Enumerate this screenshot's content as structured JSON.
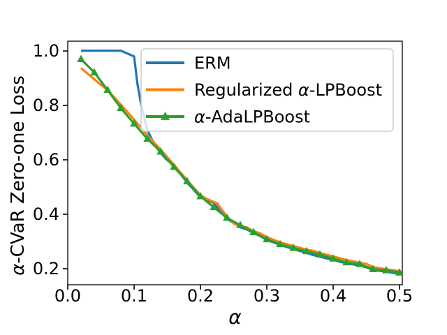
{
  "chart_data": {
    "type": "line",
    "title": "",
    "xlabel": "α",
    "ylabel": "α-CVaR Zero-one Loss",
    "xlim": [
      0.0,
      0.5042
    ],
    "ylim": [
      0.141,
      1.036
    ],
    "x_ticks": [
      0.0,
      0.1,
      0.2,
      0.3,
      0.4,
      0.5
    ],
    "x_tick_labels": [
      "0.0",
      "0.1",
      "0.2",
      "0.3",
      "0.4",
      "0.5"
    ],
    "y_ticks": [
      0.2,
      0.4,
      0.6,
      0.8,
      1.0
    ],
    "y_tick_labels": [
      "0.2",
      "0.4",
      "0.6",
      "0.8",
      "1.0"
    ],
    "grid": false,
    "legend": {
      "position": "upper right",
      "frame_fill": "rgba(255,255,255,0.8)",
      "frame_stroke": "#cccccc",
      "entries": [
        {
          "label": "ERM",
          "color": "#1f77b4",
          "marker": "none"
        },
        {
          "label": "Regularized α-LPBoost",
          "color": "#ff7f0e",
          "marker": "none"
        },
        {
          "label": "α-AdaLPBoost",
          "color": "#2ca02c",
          "marker": "triangle"
        }
      ]
    },
    "series": [
      {
        "name": "ERM",
        "color": "#1f77b4",
        "marker": "none",
        "points": [
          [
            0.02,
            1.001
          ],
          [
            0.08,
            1.001
          ],
          [
            0.1,
            0.98
          ],
          [
            0.105,
            0.879
          ],
          [
            0.11,
            0.81
          ],
          [
            0.115,
            0.755
          ],
          [
            0.12,
            0.71
          ],
          [
            0.127,
            0.674
          ],
          [
            0.138,
            0.631
          ],
          [
            0.148,
            0.603
          ],
          [
            0.16,
            0.579
          ],
          [
            0.17,
            0.548
          ],
          [
            0.18,
            0.516
          ],
          [
            0.19,
            0.49
          ],
          [
            0.2,
            0.462
          ],
          [
            0.21,
            0.452
          ],
          [
            0.22,
            0.442
          ],
          [
            0.23,
            0.41
          ],
          [
            0.24,
            0.383
          ],
          [
            0.25,
            0.368
          ],
          [
            0.26,
            0.352
          ],
          [
            0.27,
            0.344
          ],
          [
            0.28,
            0.331
          ],
          [
            0.29,
            0.32
          ],
          [
            0.3,
            0.306
          ],
          [
            0.31,
            0.297
          ],
          [
            0.32,
            0.288
          ],
          [
            0.33,
            0.28
          ],
          [
            0.34,
            0.272
          ],
          [
            0.35,
            0.265
          ],
          [
            0.36,
            0.258
          ],
          [
            0.37,
            0.25
          ],
          [
            0.38,
            0.244
          ],
          [
            0.39,
            0.238
          ],
          [
            0.4,
            0.232
          ],
          [
            0.41,
            0.226
          ],
          [
            0.42,
            0.22
          ],
          [
            0.43,
            0.216
          ],
          [
            0.44,
            0.212
          ],
          [
            0.45,
            0.205
          ],
          [
            0.46,
            0.196
          ],
          [
            0.47,
            0.192
          ],
          [
            0.48,
            0.189
          ],
          [
            0.49,
            0.185
          ],
          [
            0.5,
            0.18
          ]
        ]
      },
      {
        "name": "Regularized α-LPBoost",
        "color": "#ff7f0e",
        "marker": "none",
        "points": [
          [
            0.02,
            0.937
          ],
          [
            0.04,
            0.896
          ],
          [
            0.06,
            0.856
          ],
          [
            0.08,
            0.803
          ],
          [
            0.1,
            0.748
          ],
          [
            0.12,
            0.69
          ],
          [
            0.14,
            0.638
          ],
          [
            0.16,
            0.582
          ],
          [
            0.18,
            0.525
          ],
          [
            0.2,
            0.47
          ],
          [
            0.21,
            0.456
          ],
          [
            0.225,
            0.44
          ],
          [
            0.24,
            0.392
          ],
          [
            0.25,
            0.366
          ],
          [
            0.26,
            0.357
          ],
          [
            0.27,
            0.352
          ],
          [
            0.28,
            0.338
          ],
          [
            0.29,
            0.33
          ],
          [
            0.3,
            0.316
          ],
          [
            0.32,
            0.297
          ],
          [
            0.34,
            0.283
          ],
          [
            0.36,
            0.27
          ],
          [
            0.37,
            0.266
          ],
          [
            0.38,
            0.258
          ],
          [
            0.4,
            0.245
          ],
          [
            0.42,
            0.232
          ],
          [
            0.44,
            0.222
          ],
          [
            0.45,
            0.218
          ],
          [
            0.46,
            0.206
          ],
          [
            0.48,
            0.198
          ],
          [
            0.5,
            0.191
          ]
        ]
      },
      {
        "name": "α-AdaLPBoost",
        "color": "#2ca02c",
        "marker": "triangle",
        "points": [
          [
            0.02,
            0.97
          ],
          [
            0.04,
            0.921
          ],
          [
            0.06,
            0.857
          ],
          [
            0.08,
            0.79
          ],
          [
            0.1,
            0.733
          ],
          [
            0.12,
            0.677
          ],
          [
            0.14,
            0.63
          ],
          [
            0.16,
            0.574
          ],
          [
            0.18,
            0.521
          ],
          [
            0.2,
            0.466
          ],
          [
            0.22,
            0.426
          ],
          [
            0.24,
            0.387
          ],
          [
            0.26,
            0.36
          ],
          [
            0.28,
            0.334
          ],
          [
            0.3,
            0.308
          ],
          [
            0.32,
            0.29
          ],
          [
            0.34,
            0.276
          ],
          [
            0.36,
            0.264
          ],
          [
            0.38,
            0.252
          ],
          [
            0.4,
            0.237
          ],
          [
            0.42,
            0.223
          ],
          [
            0.44,
            0.217
          ],
          [
            0.46,
            0.198
          ],
          [
            0.48,
            0.194
          ],
          [
            0.5,
            0.186
          ]
        ]
      }
    ]
  }
}
